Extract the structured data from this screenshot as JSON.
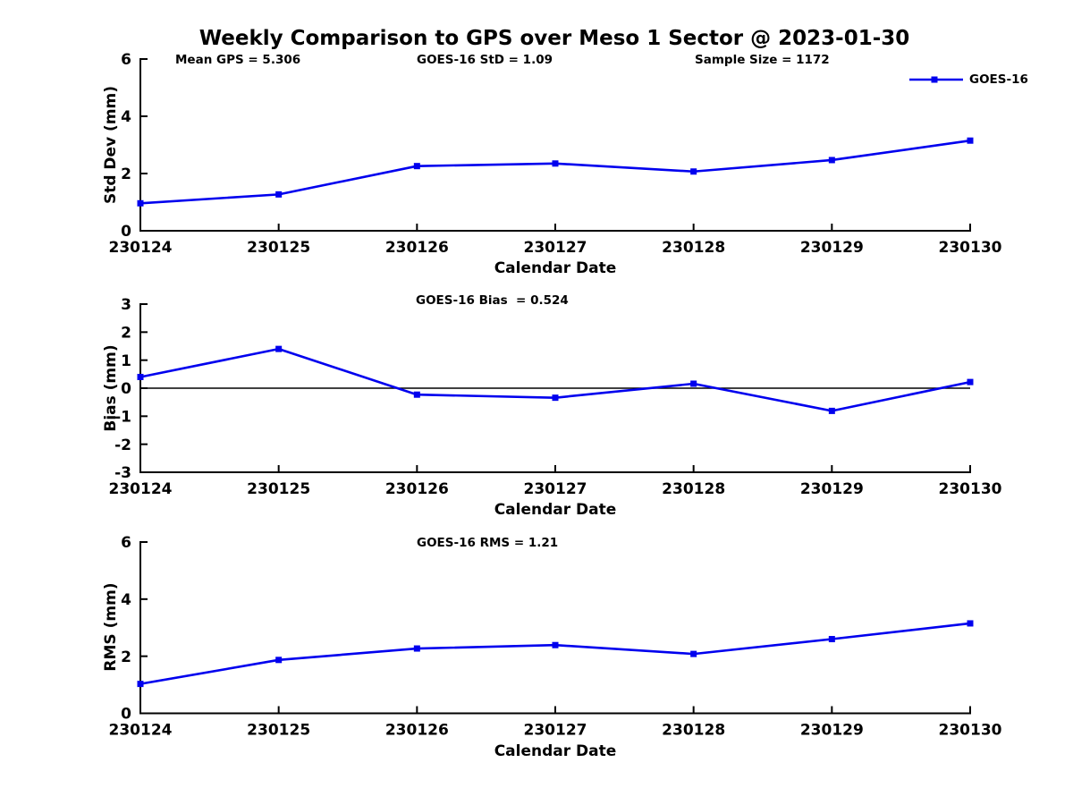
{
  "title": "Weekly Comparison to GPS over Meso 1 Sector @ 2023-01-30",
  "legend": {
    "label": "GOES-16",
    "position": "top-right"
  },
  "colors": {
    "line": "#0000ee",
    "axis": "#000000",
    "zero_line": "#000000",
    "text": "#000000"
  },
  "chart_data": [
    {
      "type": "line",
      "subplot": "std-dev",
      "categories": [
        "230124",
        "230125",
        "230126",
        "230127",
        "230128",
        "230129",
        "230130"
      ],
      "series": [
        {
          "name": "GOES-16",
          "values": [
            0.96,
            1.27,
            2.26,
            2.35,
            2.07,
            2.47,
            3.15
          ]
        }
      ],
      "xlabel": "Calendar Date",
      "ylabel": "Std Dev (mm)",
      "ylim": [
        0,
        6
      ],
      "yticks": [
        0,
        2,
        4,
        6
      ],
      "grid": false,
      "zero_line": false,
      "marker": "square",
      "annotations": [
        "Mean GPS = 5.306",
        "GOES-16 StD = 1.09",
        "Sample Size = 1172"
      ]
    },
    {
      "type": "line",
      "subplot": "bias",
      "categories": [
        "230124",
        "230125",
        "230126",
        "230127",
        "230128",
        "230129",
        "230130"
      ],
      "series": [
        {
          "name": "GOES-16",
          "values": [
            0.4,
            1.4,
            -0.23,
            -0.34,
            0.16,
            -0.81,
            0.22
          ]
        }
      ],
      "xlabel": "Calendar Date",
      "ylabel": "Bias (mm)",
      "ylim": [
        -3,
        3
      ],
      "yticks": [
        -3,
        -2,
        -1,
        0,
        1,
        2,
        3
      ],
      "grid": false,
      "zero_line": true,
      "marker": "square",
      "annotations": [
        "GOES-16 Bias  = 0.524"
      ]
    },
    {
      "type": "line",
      "subplot": "rms",
      "categories": [
        "230124",
        "230125",
        "230126",
        "230127",
        "230128",
        "230129",
        "230130"
      ],
      "series": [
        {
          "name": "GOES-16",
          "values": [
            1.03,
            1.87,
            2.27,
            2.39,
            2.08,
            2.6,
            3.15
          ]
        }
      ],
      "xlabel": "Calendar Date",
      "ylabel": "RMS (mm)",
      "ylim": [
        0,
        6
      ],
      "yticks": [
        0,
        2,
        4,
        6
      ],
      "grid": false,
      "zero_line": false,
      "marker": "square",
      "annotations": [
        "GOES-16 RMS = 1.21"
      ]
    }
  ]
}
